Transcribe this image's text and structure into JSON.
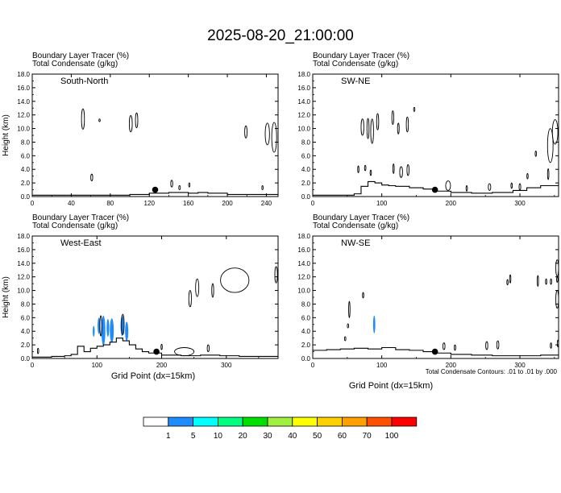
{
  "figure": {
    "title": "2025-08-20_21:00:00",
    "note": "Total Condensate Contours: .01 to .01 by .000"
  },
  "colorbar": {
    "levels": [
      "1",
      "5",
      "10",
      "20",
      "30",
      "40",
      "50",
      "60",
      "70",
      "100"
    ],
    "colors": [
      "#ffffff",
      "#1e8cff",
      "#00ffff",
      "#00ff80",
      "#00e000",
      "#a0f040",
      "#ffff00",
      "#ffd000",
      "#ffa000",
      "#ff5000",
      "#ff0000"
    ]
  },
  "colors": {
    "tracer_blue": "#1e8cff",
    "contour": "#000000"
  },
  "chart_data": [
    {
      "type": "contour",
      "panel_label": "South-North",
      "title_line1": "Boundary Layer Tracer   (%)",
      "title_line2": "Total Condensate   (g/kg)",
      "ylabel": "Height (km)",
      "xlabel": "",
      "ylim": [
        0,
        18
      ],
      "yticks": [
        "0.0",
        "2.0",
        "4.0",
        "6.0",
        "8.0",
        "10.0",
        "12.0",
        "14.0",
        "16.0",
        "18.0"
      ],
      "xlim": [
        0,
        252
      ],
      "xticks": [
        0,
        40,
        80,
        120,
        160,
        200,
        240
      ],
      "site_marker": {
        "x": 126,
        "y": 1.0
      },
      "terrain": [
        [
          0,
          0.2
        ],
        [
          30,
          0.2
        ],
        [
          80,
          0.2
        ],
        [
          100,
          0.3
        ],
        [
          120,
          0.5
        ],
        [
          140,
          0.6
        ],
        [
          160,
          0.5
        ],
        [
          170,
          0.6
        ],
        [
          180,
          0.5
        ],
        [
          200,
          0.3
        ],
        [
          230,
          0.3
        ],
        [
          252,
          0.3
        ]
      ],
      "contours": [
        {
          "x": 52,
          "y": 11.4,
          "rx": 1.5,
          "ry": 1.5
        },
        {
          "x": 69,
          "y": 11.2,
          "rx": 0.4,
          "ry": 0.2
        },
        {
          "x": 61,
          "y": 2.8,
          "rx": 1,
          "ry": 0.5
        },
        {
          "x": 101,
          "y": 10.7,
          "rx": 1.5,
          "ry": 1.2
        },
        {
          "x": 107,
          "y": 11.2,
          "rx": 1.2,
          "ry": 1.1
        },
        {
          "x": 143,
          "y": 1.9,
          "rx": 1,
          "ry": 0.5
        },
        {
          "x": 151,
          "y": 1.3,
          "rx": 0.8,
          "ry": 0.3
        },
        {
          "x": 161,
          "y": 1.7,
          "rx": 0.6,
          "ry": 0.3
        },
        {
          "x": 219,
          "y": 9.5,
          "rx": 1.2,
          "ry": 0.9
        },
        {
          "x": 236,
          "y": 1.3,
          "rx": 0.6,
          "ry": 0.3
        },
        {
          "x": 241,
          "y": 9.2,
          "rx": 2.2,
          "ry": 1.6
        },
        {
          "x": 248,
          "y": 8.7,
          "rx": 2.5,
          "ry": 2.2
        }
      ],
      "fills": []
    },
    {
      "type": "contour",
      "panel_label": "SW-NE",
      "title_line1": "Boundary Layer Tracer   (%)",
      "title_line2": "Total Condensate   (g/kg)",
      "ylabel": "",
      "xlabel": "",
      "ylim": [
        0,
        18
      ],
      "yticks": [
        "0.0",
        "2.0",
        "4.0",
        "6.0",
        "8.0",
        "10.0",
        "12.0",
        "14.0",
        "16.0",
        "18.0"
      ],
      "xlim": [
        0,
        356
      ],
      "xticks": [
        0,
        100,
        200,
        300
      ],
      "site_marker": {
        "x": 177,
        "y": 1.0
      },
      "terrain": [
        [
          0,
          0.2
        ],
        [
          40,
          0.2
        ],
        [
          60,
          0.4
        ],
        [
          70,
          1.5
        ],
        [
          80,
          2.2
        ],
        [
          90,
          2.0
        ],
        [
          100,
          1.7
        ],
        [
          110,
          1.6
        ],
        [
          120,
          1.5
        ],
        [
          140,
          1.3
        ],
        [
          160,
          1.1
        ],
        [
          180,
          0.8
        ],
        [
          200,
          0.6
        ],
        [
          230,
          0.5
        ],
        [
          260,
          0.6
        ],
        [
          290,
          0.9
        ],
        [
          310,
          1.3
        ],
        [
          330,
          1.6
        ],
        [
          356,
          1.8
        ]
      ],
      "contours": [
        {
          "x": 72,
          "y": 10.2,
          "rx": 2,
          "ry": 1.2
        },
        {
          "x": 80,
          "y": 10.0,
          "rx": 1.5,
          "ry": 1.5
        },
        {
          "x": 86,
          "y": 9.6,
          "rx": 2,
          "ry": 1.8
        },
        {
          "x": 94,
          "y": 11.0,
          "rx": 1.5,
          "ry": 1.2
        },
        {
          "x": 66,
          "y": 4.0,
          "rx": 0.9,
          "ry": 0.5
        },
        {
          "x": 76,
          "y": 4.2,
          "rx": 1,
          "ry": 0.4
        },
        {
          "x": 84,
          "y": 3.5,
          "rx": 0.8,
          "ry": 0.4
        },
        {
          "x": 116,
          "y": 11.6,
          "rx": 1.4,
          "ry": 1
        },
        {
          "x": 124,
          "y": 10.0,
          "rx": 1.2,
          "ry": 0.8
        },
        {
          "x": 137,
          "y": 10.6,
          "rx": 1.5,
          "ry": 1.1
        },
        {
          "x": 128,
          "y": 3.6,
          "rx": 2,
          "ry": 0.8
        },
        {
          "x": 138,
          "y": 3.9,
          "rx": 1.5,
          "ry": 0.8
        },
        {
          "x": 117,
          "y": 4.1,
          "rx": 1,
          "ry": 0.7
        },
        {
          "x": 147,
          "y": 12.8,
          "rx": 0.3,
          "ry": 0.3
        },
        {
          "x": 196,
          "y": 1.6,
          "rx": 3.5,
          "ry": 0.7
        },
        {
          "x": 223,
          "y": 1.2,
          "rx": 1,
          "ry": 0.4
        },
        {
          "x": 256,
          "y": 1.4,
          "rx": 1.8,
          "ry": 0.5
        },
        {
          "x": 288,
          "y": 1.6,
          "rx": 1,
          "ry": 0.4
        },
        {
          "x": 300,
          "y": 1.4,
          "rx": 1.2,
          "ry": 0.5
        },
        {
          "x": 311,
          "y": 3.0,
          "rx": 0.8,
          "ry": 0.4
        },
        {
          "x": 323,
          "y": 6.3,
          "rx": 0.4,
          "ry": 0.4
        },
        {
          "x": 341,
          "y": 3.3,
          "rx": 1,
          "ry": 0.8
        },
        {
          "x": 344,
          "y": 7.5,
          "rx": 4,
          "ry": 2.5
        },
        {
          "x": 351,
          "y": 9.5,
          "rx": 4,
          "ry": 1.8
        }
      ],
      "fills": []
    },
    {
      "type": "contour",
      "panel_label": "West-East",
      "title_line1": "Boundary Layer Tracer   (%)",
      "title_line2": "Total Condensate   (g/kg)",
      "ylabel": "Height (km)",
      "xlabel": "Grid Point (dx=15km)",
      "ylim": [
        0,
        18
      ],
      "yticks": [
        "0.0",
        "2.0",
        "4.0",
        "6.0",
        "8.0",
        "10.0",
        "12.0",
        "14.0",
        "16.0",
        "18.0"
      ],
      "xlim": [
        0,
        380
      ],
      "xticks": [
        0,
        100,
        200,
        300
      ],
      "site_marker": {
        "x": 192,
        "y": 1.0
      },
      "terrain": [
        [
          0,
          0.2
        ],
        [
          30,
          0.3
        ],
        [
          50,
          0.4
        ],
        [
          60,
          0.6
        ],
        [
          70,
          1.8
        ],
        [
          80,
          1.0
        ],
        [
          90,
          1.5
        ],
        [
          100,
          1.8
        ],
        [
          110,
          2.0
        ],
        [
          120,
          2.4
        ],
        [
          130,
          3.0
        ],
        [
          140,
          2.6
        ],
        [
          150,
          2.0
        ],
        [
          160,
          1.4
        ],
        [
          170,
          1.0
        ],
        [
          180,
          0.8
        ],
        [
          200,
          0.5
        ],
        [
          230,
          0.4
        ],
        [
          260,
          0.5
        ],
        [
          290,
          0.4
        ],
        [
          320,
          0.3
        ],
        [
          350,
          0.3
        ],
        [
          380,
          0.3
        ]
      ],
      "contours": [
        {
          "x": 9,
          "y": 1.1,
          "rx": 1,
          "ry": 0.4
        },
        {
          "x": 255,
          "y": 10.4,
          "rx": 2.5,
          "ry": 1.3
        },
        {
          "x": 244,
          "y": 8.8,
          "rx": 2,
          "ry": 1.2
        },
        {
          "x": 279,
          "y": 10.0,
          "rx": 1.5,
          "ry": 1
        },
        {
          "x": 313,
          "y": 11.5,
          "rx": 22,
          "ry": 1.8
        },
        {
          "x": 235,
          "y": 1.0,
          "rx": 15,
          "ry": 0.6
        },
        {
          "x": 272,
          "y": 1.5,
          "rx": 1.5,
          "ry": 0.5
        },
        {
          "x": 200,
          "y": 1.7,
          "rx": 1,
          "ry": 0.4
        },
        {
          "x": 377,
          "y": 12.3,
          "rx": 2,
          "ry": 1.2
        },
        {
          "x": 106,
          "y": 4.8,
          "rx": 1.5,
          "ry": 1.5
        },
        {
          "x": 140,
          "y": 5.0,
          "rx": 2,
          "ry": 1.5
        }
      ],
      "fills": [
        {
          "x": 95,
          "y": 4.0,
          "rx": 1.5,
          "ry": 0.8
        },
        {
          "x": 103,
          "y": 4.8,
          "rx": 2,
          "ry": 1.2
        },
        {
          "x": 110,
          "y": 4.1,
          "rx": 3,
          "ry": 2.2
        },
        {
          "x": 117,
          "y": 4.5,
          "rx": 2,
          "ry": 1.3
        },
        {
          "x": 123,
          "y": 4.1,
          "rx": 3,
          "ry": 1.8
        },
        {
          "x": 139,
          "y": 4.8,
          "rx": 2.5,
          "ry": 1.5
        },
        {
          "x": 146,
          "y": 4.0,
          "rx": 2.5,
          "ry": 1.4
        }
      ]
    },
    {
      "type": "contour",
      "panel_label": "NW-SE",
      "title_line1": "Boundary Layer Tracer   (%)",
      "title_line2": "Total Condensate   (g/kg)",
      "ylabel": "",
      "xlabel": "Grid Point (dx=15km)",
      "ylim": [
        0,
        18
      ],
      "yticks": [
        "0.0",
        "2.0",
        "4.0",
        "6.0",
        "8.0",
        "10.0",
        "12.0",
        "14.0",
        "16.0",
        "18.0"
      ],
      "xlim": [
        0,
        356
      ],
      "xticks": [
        0,
        100,
        200,
        300
      ],
      "site_marker": {
        "x": 177,
        "y": 1.0
      },
      "terrain": [
        [
          0,
          1.2
        ],
        [
          20,
          1.3
        ],
        [
          40,
          1.4
        ],
        [
          60,
          1.5
        ],
        [
          80,
          1.4
        ],
        [
          100,
          1.6
        ],
        [
          120,
          1.3
        ],
        [
          140,
          1.2
        ],
        [
          160,
          1.0
        ],
        [
          180,
          0.8
        ],
        [
          200,
          0.6
        ],
        [
          230,
          0.5
        ],
        [
          260,
          0.4
        ],
        [
          300,
          0.4
        ],
        [
          330,
          0.5
        ],
        [
          356,
          0.6
        ]
      ],
      "contours": [
        {
          "x": 47,
          "y": 2.9,
          "rx": 0.5,
          "ry": 0.3
        },
        {
          "x": 53,
          "y": 7.2,
          "rx": 1,
          "ry": 1.2
        },
        {
          "x": 51,
          "y": 4.8,
          "rx": 0.5,
          "ry": 0.3
        },
        {
          "x": 73,
          "y": 9.3,
          "rx": 0.5,
          "ry": 0.4
        },
        {
          "x": 190,
          "y": 1.8,
          "rx": 1.5,
          "ry": 0.5
        },
        {
          "x": 206,
          "y": 1.6,
          "rx": 1,
          "ry": 0.4
        },
        {
          "x": 252,
          "y": 1.9,
          "rx": 1.5,
          "ry": 0.6
        },
        {
          "x": 268,
          "y": 2.0,
          "rx": 1.5,
          "ry": 0.6
        },
        {
          "x": 282,
          "y": 11.2,
          "rx": 0.5,
          "ry": 0.4
        },
        {
          "x": 286,
          "y": 11.7,
          "rx": 0.5,
          "ry": 0.6
        },
        {
          "x": 326,
          "y": 11.4,
          "rx": 0.8,
          "ry": 0.8
        },
        {
          "x": 338,
          "y": 11.3,
          "rx": 0.5,
          "ry": 0.4
        },
        {
          "x": 345,
          "y": 11.3,
          "rx": 0.5,
          "ry": 0.4
        },
        {
          "x": 354,
          "y": 11.6,
          "rx": 0.5,
          "ry": 0.4
        },
        {
          "x": 354,
          "y": 8.7,
          "rx": 2,
          "ry": 1.3
        },
        {
          "x": 354,
          "y": 13.3,
          "rx": 2,
          "ry": 1.2
        },
        {
          "x": 355,
          "y": 2.2,
          "rx": 0.8,
          "ry": 0.5
        },
        {
          "x": 345,
          "y": 1.9,
          "rx": 0.8,
          "ry": 0.4
        }
      ],
      "fills": [
        {
          "x": 89,
          "y": 5.0,
          "rx": 1.6,
          "ry": 1.3
        }
      ]
    }
  ]
}
